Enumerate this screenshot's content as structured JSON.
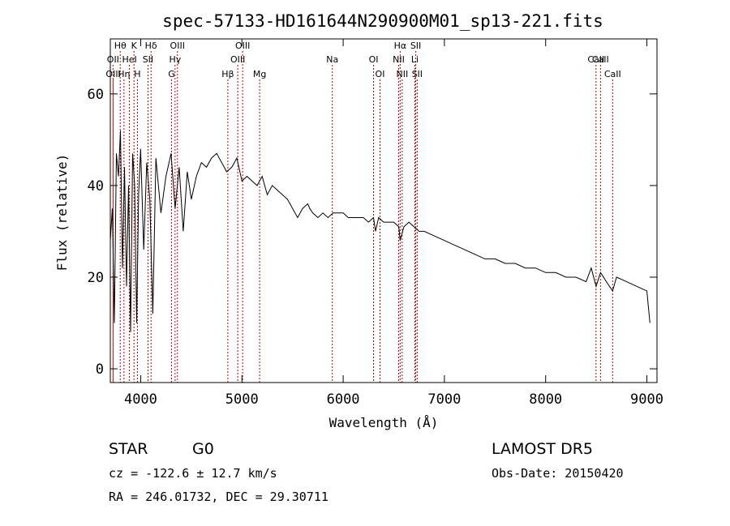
{
  "chart_data": {
    "type": "line",
    "title": "spec-57133-HD161644N290900M01_sp13-221.fits",
    "xlabel": "Wavelength (Å)",
    "ylabel": "Flux (relative)",
    "xlim": [
      3700,
      9100
    ],
    "ylim": [
      -3,
      72
    ],
    "x_ticks": [
      "4000",
      "5000",
      "6000",
      "7000",
      "8000",
      "9000"
    ],
    "y_ticks": [
      "0",
      "20",
      "40",
      "60"
    ],
    "grid": false,
    "series": [
      {
        "x": [
          3700,
          3720,
          3740,
          3760,
          3780,
          3800,
          3820,
          3840,
          3860,
          3880,
          3900,
          3920,
          3940,
          3960,
          3980,
          4000,
          4030,
          4060,
          4090,
          4120,
          4150,
          4200,
          4250,
          4300,
          4340,
          4380,
          4420,
          4460,
          4500,
          4550,
          4600,
          4650,
          4700,
          4750,
          4800,
          4850,
          4900,
          4950,
          5000,
          5050,
          5100,
          5150,
          5200,
          5250,
          5300,
          5350,
          5400,
          5450,
          5500,
          5550,
          5600,
          5650,
          5670,
          5700,
          5750,
          5800,
          5850,
          5900,
          5950,
          6000,
          6050,
          6100,
          6150,
          6200,
          6250,
          6300,
          6320,
          6350,
          6400,
          6450,
          6500,
          6550,
          6563,
          6600,
          6650,
          6700,
          6750,
          6800,
          6900,
          7000,
          7100,
          7200,
          7300,
          7400,
          7500,
          7600,
          7700,
          7800,
          7900,
          8000,
          8100,
          8200,
          8300,
          8400,
          8450,
          8498,
          8542,
          8600,
          8662,
          8700,
          8800,
          8900,
          9000,
          9030
        ],
        "y": [
          28,
          35,
          10,
          47,
          42,
          52,
          22,
          44,
          18,
          40,
          8,
          47,
          40,
          10,
          38,
          48,
          26,
          45,
          37,
          12,
          46,
          34,
          42,
          47,
          35,
          44,
          30,
          43,
          37,
          42,
          45,
          44,
          46,
          47,
          45,
          43,
          44,
          46,
          41,
          42,
          41,
          40,
          42,
          38,
          40,
          39,
          38,
          37,
          35,
          33,
          35,
          36,
          35,
          34,
          33,
          34,
          33,
          34,
          34,
          34,
          33,
          33,
          33,
          33,
          32,
          33,
          30,
          33,
          32,
          32,
          32,
          31,
          28,
          31,
          32,
          31,
          30,
          30,
          29,
          28,
          27,
          26,
          25,
          24,
          24,
          23,
          23,
          22,
          22,
          21,
          21,
          20,
          20,
          19,
          22,
          18,
          21,
          19,
          17,
          20,
          19,
          18,
          17,
          10
        ]
      }
    ],
    "annotations": {
      "lines": [
        {
          "label": "Hθ",
          "x": 3798
        },
        {
          "label": "K",
          "x": 3934
        },
        {
          "label": "Hδ",
          "x": 4102
        },
        {
          "label": "OIII",
          "x": 4363
        },
        {
          "label": "OIII",
          "x": 5007
        },
        {
          "label": "Hα",
          "x": 6563
        },
        {
          "label": "SII",
          "x": 6717
        },
        {
          "label": "OII",
          "x": 3727
        },
        {
          "label": "HeI",
          "x": 3889
        },
        {
          "label": "SII",
          "x": 4072
        },
        {
          "label": "Hγ",
          "x": 4340
        },
        {
          "label": "OIII",
          "x": 4959
        },
        {
          "label": "Na",
          "x": 5893
        },
        {
          "label": "OI",
          "x": 6300
        },
        {
          "label": "NII",
          "x": 6548
        },
        {
          "label": "Li",
          "x": 6708
        },
        {
          "label": "CaII",
          "x": 8498
        },
        {
          "label": "CaII",
          "x": 8542
        },
        {
          "label": "OIII",
          "x": 3729
        },
        {
          "label": "Hη",
          "x": 3835
        },
        {
          "label": "H",
          "x": 3968
        },
        {
          "label": "G",
          "x": 4305
        },
        {
          "label": "Hβ",
          "x": 4861
        },
        {
          "label": "Mg",
          "x": 5175
        },
        {
          "label": "OI",
          "x": 6364
        },
        {
          "label": "NII",
          "x": 6583
        },
        {
          "label": "SII",
          "x": 6731
        },
        {
          "label": "CaII",
          "x": 8662
        }
      ]
    }
  },
  "info": {
    "class": "STAR",
    "subclass": "G0",
    "survey": "LAMOST DR5",
    "cz": "cz = -122.6 ± 12.7 km/s",
    "obs_date": "Obs-Date: 20150420",
    "radec": "RA = 246.01732, DEC =  29.30711"
  }
}
